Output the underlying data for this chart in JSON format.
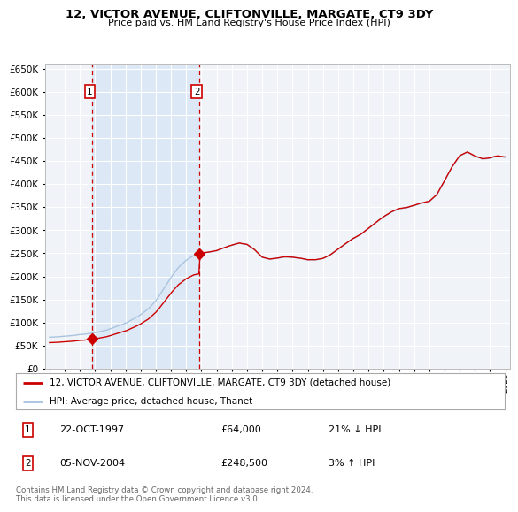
{
  "title": "12, VICTOR AVENUE, CLIFTONVILLE, MARGATE, CT9 3DY",
  "subtitle": "Price paid vs. HM Land Registry's House Price Index (HPI)",
  "hpi_label": "HPI: Average price, detached house, Thanet",
  "property_label": "12, VICTOR AVENUE, CLIFTONVILLE, MARGATE, CT9 3DY (detached house)",
  "footer": "Contains HM Land Registry data © Crown copyright and database right 2024.\nThis data is licensed under the Open Government Licence v3.0.",
  "sale1_date": "22-OCT-1997",
  "sale1_price": 64000,
  "sale1_hpi": "21% ↓ HPI",
  "sale2_date": "05-NOV-2004",
  "sale2_price": 248500,
  "sale2_hpi": "3% ↑ HPI",
  "sale1_x": 1997.81,
  "sale2_x": 2004.84,
  "hpi_color": "#aac4e0",
  "price_color": "#cc0000",
  "shade_color": "#dce8f5",
  "bg_color": "#f0f4f8",
  "grid_color": "#ffffff",
  "ylim_max": 660000,
  "xlim_start": 1994.7,
  "xlim_end": 2025.3
}
